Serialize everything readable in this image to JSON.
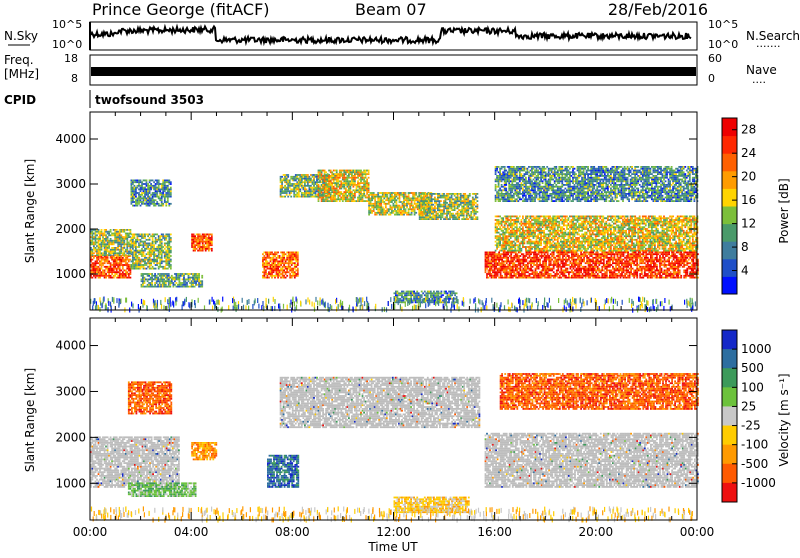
{
  "header": {
    "station": "Prince George (fitACF)",
    "beam": "Beam 07",
    "date": "28/Feb/2016"
  },
  "strips": {
    "nsky_label": "N.Sky",
    "nsearch_label": "N.Search",
    "nsearch_dots": "·······",
    "nsky_ticks_left": [
      "10^5",
      "10^0"
    ],
    "nsky_ticks_right": [
      "10^5",
      "10^0"
    ],
    "freq_label_line1": "Freq.",
    "freq_label_line2": "[MHz]",
    "freq_ticks": [
      "18",
      "8"
    ],
    "nave_label": "Nave",
    "nave_dots": "····",
    "nave_ticks": [
      "60",
      "0"
    ],
    "cpid_label": "CPID",
    "cpid_value": "twofsound 3503"
  },
  "colors": {
    "power_scale": [
      "#0010ff",
      "#1f4fc8",
      "#3f7d9e",
      "#4a9a6a",
      "#7cbf3a",
      "#ffd400",
      "#ff9c00",
      "#ff6000",
      "#ff2800",
      "#ee0000"
    ],
    "velocity_scale": [
      "#1428c8",
      "#2d6ea0",
      "#3c9a5a",
      "#6cc23c",
      "#c8c8c8",
      "#ffcc00",
      "#ff9a00",
      "#ff5a00",
      "#ee1010"
    ],
    "ground_scatter": "#bdbdbd"
  },
  "chart_data": [
    {
      "type": "heatmap",
      "panel": "power",
      "xlabel": "",
      "ylabel": "Slant Range [km]",
      "x_range_hours": [
        0,
        24
      ],
      "ylim": [
        200,
        4600
      ],
      "yticks": [
        1000,
        2000,
        3000,
        4000
      ],
      "colorbar_label": "Power [dB]",
      "colorbar_ticks": [
        4,
        8,
        12,
        16,
        20,
        24,
        28
      ],
      "colorbar_range": [
        0,
        30
      ],
      "bands": [
        {
          "t0": 0.0,
          "t1": 1.6,
          "r0": 900,
          "r1": 1400,
          "level": 0.8
        },
        {
          "t0": 0.0,
          "t1": 1.6,
          "r0": 1400,
          "r1": 2000,
          "level": 0.45
        },
        {
          "t0": 1.6,
          "t1": 3.2,
          "r0": 1100,
          "r1": 1900,
          "level": 0.4
        },
        {
          "t0": 1.6,
          "t1": 3.2,
          "r0": 2500,
          "r1": 3100,
          "level": 0.3
        },
        {
          "t0": 2.0,
          "t1": 4.4,
          "r0": 700,
          "r1": 1000,
          "level": 0.35
        },
        {
          "t0": 4.0,
          "t1": 4.8,
          "r0": 1500,
          "r1": 1900,
          "level": 0.8
        },
        {
          "t0": 6.8,
          "t1": 8.2,
          "r0": 900,
          "r1": 1500,
          "level": 0.75
        },
        {
          "t0": 7.5,
          "t1": 9.5,
          "r0": 2700,
          "r1": 3200,
          "level": 0.4
        },
        {
          "t0": 9.0,
          "t1": 11.0,
          "r0": 2600,
          "r1": 3300,
          "level": 0.55
        },
        {
          "t0": 11.0,
          "t1": 13.5,
          "r0": 2300,
          "r1": 2800,
          "level": 0.5
        },
        {
          "t0": 13.0,
          "t1": 15.3,
          "r0": 2200,
          "r1": 2800,
          "level": 0.45
        },
        {
          "t0": 12.0,
          "t1": 14.5,
          "r0": 350,
          "r1": 600,
          "level": 0.3
        },
        {
          "t0": 15.6,
          "t1": 24.0,
          "r0": 900,
          "r1": 1500,
          "level": 0.85
        },
        {
          "t0": 16.0,
          "t1": 24.0,
          "r0": 1500,
          "r1": 2300,
          "level": 0.55
        },
        {
          "t0": 16.0,
          "t1": 24.0,
          "r0": 2600,
          "r1": 3400,
          "level": 0.3
        }
      ]
    },
    {
      "type": "heatmap",
      "panel": "velocity",
      "xlabel": "Time UT",
      "ylabel": "Slant Range [km]",
      "x_range_hours": [
        0,
        24
      ],
      "ylim": [
        200,
        4600
      ],
      "yticks": [
        1000,
        2000,
        3000,
        4000
      ],
      "xtick_labels": [
        "00:00",
        "04:00",
        "08:00",
        "12:00",
        "16:00",
        "20:00",
        "00:00"
      ],
      "colorbar_label": "Velocity [m s⁻¹]",
      "colorbar_ticks": [
        "1000",
        "500",
        "100",
        "25",
        "-25",
        "-100",
        "-500",
        "-1000"
      ],
      "bands": [
        {
          "t0": 0.0,
          "t1": 3.5,
          "r0": 900,
          "r1": 2000,
          "class": "ground"
        },
        {
          "t0": 1.5,
          "t1": 4.2,
          "r0": 700,
          "r1": 1000,
          "class": 3
        },
        {
          "t0": 4.0,
          "t1": 5.0,
          "r0": 1500,
          "r1": 1900,
          "class": 6
        },
        {
          "t0": 7.0,
          "t1": 8.2,
          "r0": 900,
          "r1": 1600,
          "class": 1
        },
        {
          "t0": 7.5,
          "t1": 15.4,
          "r0": 2200,
          "r1": 3300,
          "class": "ground"
        },
        {
          "t0": 1.5,
          "t1": 3.2,
          "r0": 2500,
          "r1": 3200,
          "class": 7
        },
        {
          "t0": 12.0,
          "t1": 15.0,
          "r0": 350,
          "r1": 700,
          "class": 5
        },
        {
          "t0": 15.6,
          "t1": 24.0,
          "r0": 900,
          "r1": 2100,
          "class": "ground"
        },
        {
          "t0": 16.2,
          "t1": 24.0,
          "r0": 2600,
          "r1": 3400,
          "class": 7
        }
      ]
    }
  ]
}
